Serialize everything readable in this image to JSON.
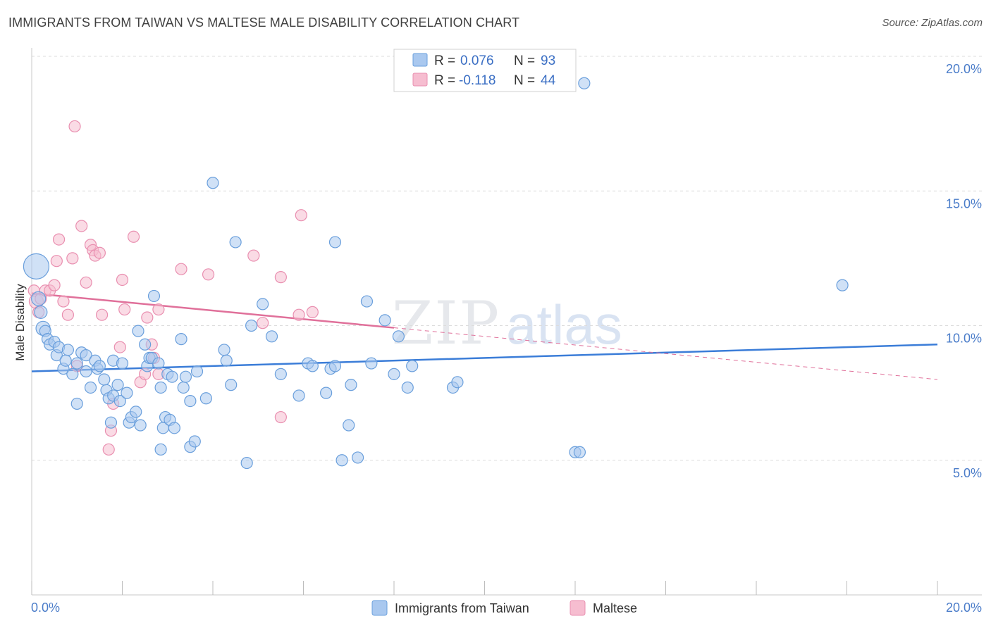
{
  "title": "IMMIGRANTS FROM TAIWAN VS MALTESE MALE DISABILITY CORRELATION CHART",
  "source": "Source: ZipAtlas.com",
  "watermark": {
    "zip": "ZIP",
    "atlas": "atlas"
  },
  "colors": {
    "taiwan_fill": "#a9c8ef",
    "taiwan_stroke": "#6a9fdc",
    "taiwan_line": "#3b7dd8",
    "maltese_fill": "#f6bdd0",
    "maltese_stroke": "#e98fb0",
    "maltese_line": "#e0709a",
    "grid": "#dcdcdc",
    "tick_label": "#4a7cc9"
  },
  "legend": {
    "rows": [
      {
        "r_label": "R = ",
        "r_value": "0.076",
        "n_label": "N = ",
        "n_value": "93"
      },
      {
        "r_label": "R = ",
        "r_value": "-0.118",
        "n_label": "N = ",
        "n_value": "44"
      }
    ]
  },
  "chart_data": {
    "type": "scatter",
    "title": "IMMIGRANTS FROM TAIWAN VS MALTESE MALE DISABILITY CORRELATION CHART",
    "xlabel": "",
    "ylabel": "Male Disability",
    "xlim": [
      0,
      20
    ],
    "ylim": [
      0,
      20
    ],
    "x_tick_labels": [
      "0.0%",
      "20.0%"
    ],
    "y_ticks": [
      5,
      10,
      15,
      20
    ],
    "y_tick_labels": [
      "5.0%",
      "10.0%",
      "15.0%",
      "20.0%"
    ],
    "grid": "horizontal dashed",
    "legend_position": "top-center",
    "series": [
      {
        "name": "Immigrants from Taiwan",
        "r": 0.076,
        "n": 93,
        "trend": {
          "x": [
            0,
            20
          ],
          "y": [
            8.3,
            9.3
          ],
          "dashed_from": null
        },
        "points": [
          [
            0.1,
            12.2,
            18
          ],
          [
            0.15,
            11.0,
            10
          ],
          [
            0.2,
            10.5,
            9
          ],
          [
            0.25,
            9.9,
            10
          ],
          [
            0.3,
            9.8,
            8
          ],
          [
            0.35,
            9.5,
            8
          ],
          [
            0.4,
            9.3,
            8
          ],
          [
            0.5,
            9.4,
            8
          ],
          [
            0.55,
            8.9,
            8
          ],
          [
            0.6,
            9.2,
            8
          ],
          [
            0.7,
            8.4,
            8
          ],
          [
            0.75,
            8.7,
            8
          ],
          [
            0.8,
            9.1,
            8
          ],
          [
            0.9,
            8.2,
            8
          ],
          [
            1.0,
            8.6,
            8
          ],
          [
            1.0,
            7.1,
            8
          ],
          [
            1.1,
            9.0,
            8
          ],
          [
            1.2,
            8.3,
            8
          ],
          [
            1.2,
            8.9,
            8
          ],
          [
            1.3,
            7.7,
            8
          ],
          [
            1.4,
            8.7,
            8
          ],
          [
            1.45,
            8.4,
            8
          ],
          [
            1.5,
            8.5,
            8
          ],
          [
            1.6,
            8.0,
            8
          ],
          [
            1.65,
            7.6,
            8
          ],
          [
            1.7,
            7.3,
            8
          ],
          [
            1.8,
            7.4,
            8
          ],
          [
            1.75,
            6.4,
            8
          ],
          [
            1.8,
            8.7,
            8
          ],
          [
            1.9,
            7.8,
            8
          ],
          [
            1.95,
            7.2,
            8
          ],
          [
            2.0,
            8.6,
            8
          ],
          [
            2.1,
            7.5,
            8
          ],
          [
            2.15,
            6.4,
            8
          ],
          [
            2.2,
            6.6,
            8
          ],
          [
            2.3,
            6.8,
            8
          ],
          [
            2.35,
            9.8,
            8
          ],
          [
            2.4,
            6.3,
            8
          ],
          [
            2.5,
            9.3,
            8
          ],
          [
            2.55,
            8.5,
            8
          ],
          [
            2.6,
            8.8,
            8
          ],
          [
            2.65,
            8.8,
            8
          ],
          [
            2.7,
            11.1,
            8
          ],
          [
            2.8,
            8.6,
            8
          ],
          [
            2.85,
            7.7,
            8
          ],
          [
            2.85,
            5.4,
            8
          ],
          [
            2.9,
            6.2,
            8
          ],
          [
            2.95,
            6.6,
            8
          ],
          [
            3.0,
            8.2,
            8
          ],
          [
            3.05,
            6.5,
            8
          ],
          [
            3.1,
            8.1,
            8
          ],
          [
            3.15,
            6.2,
            8
          ],
          [
            3.3,
            9.5,
            8
          ],
          [
            3.35,
            7.7,
            8
          ],
          [
            3.4,
            8.1,
            8
          ],
          [
            3.5,
            7.2,
            8
          ],
          [
            3.5,
            5.5,
            8
          ],
          [
            3.6,
            5.7,
            8
          ],
          [
            3.65,
            8.3,
            8
          ],
          [
            3.85,
            7.3,
            8
          ],
          [
            4.0,
            15.3,
            8
          ],
          [
            4.25,
            9.1,
            8
          ],
          [
            4.3,
            8.7,
            8
          ],
          [
            4.4,
            7.8,
            8
          ],
          [
            4.5,
            13.1,
            8
          ],
          [
            4.75,
            4.9,
            8
          ],
          [
            4.85,
            10.0,
            8
          ],
          [
            5.1,
            10.8,
            8
          ],
          [
            5.3,
            9.6,
            8
          ],
          [
            5.5,
            8.2,
            8
          ],
          [
            5.9,
            7.4,
            8
          ],
          [
            6.1,
            8.6,
            8
          ],
          [
            6.2,
            8.5,
            8
          ],
          [
            6.5,
            7.5,
            8
          ],
          [
            6.6,
            8.4,
            8
          ],
          [
            6.7,
            13.1,
            8
          ],
          [
            6.7,
            8.5,
            8
          ],
          [
            6.85,
            5.0,
            8
          ],
          [
            7.0,
            6.3,
            8
          ],
          [
            7.05,
            7.8,
            8
          ],
          [
            7.2,
            5.1,
            8
          ],
          [
            7.4,
            10.9,
            8
          ],
          [
            7.5,
            8.6,
            8
          ],
          [
            7.8,
            10.2,
            8
          ],
          [
            8.0,
            8.2,
            8
          ],
          [
            8.1,
            9.6,
            8
          ],
          [
            8.3,
            7.7,
            8
          ],
          [
            8.4,
            8.5,
            8
          ],
          [
            9.3,
            7.7,
            8
          ],
          [
            9.4,
            7.9,
            8
          ],
          [
            12.0,
            5.3,
            8
          ],
          [
            12.1,
            5.3,
            8
          ],
          [
            17.9,
            11.5,
            8
          ],
          [
            12.2,
            19.0,
            8
          ]
        ]
      },
      {
        "name": "Maltese",
        "r": -0.118,
        "n": 44,
        "trend": {
          "x": [
            0,
            20
          ],
          "y": [
            11.2,
            8.0
          ],
          "dashed_from": 8.0
        },
        "points": [
          [
            0.05,
            11.3,
            8
          ],
          [
            0.1,
            10.9,
            10
          ],
          [
            0.15,
            10.5,
            8
          ],
          [
            0.2,
            11.0,
            8
          ],
          [
            0.3,
            11.3,
            8
          ],
          [
            0.4,
            11.3,
            8
          ],
          [
            0.5,
            11.5,
            8
          ],
          [
            0.55,
            12.4,
            8
          ],
          [
            0.6,
            13.2,
            8
          ],
          [
            0.7,
            10.9,
            8
          ],
          [
            0.8,
            10.4,
            8
          ],
          [
            0.9,
            12.5,
            8
          ],
          [
            0.95,
            17.4,
            8
          ],
          [
            1.0,
            8.5,
            8
          ],
          [
            1.1,
            13.7,
            8
          ],
          [
            1.2,
            11.6,
            8
          ],
          [
            1.3,
            13.0,
            8
          ],
          [
            1.35,
            12.8,
            8
          ],
          [
            1.4,
            12.6,
            8
          ],
          [
            1.5,
            12.7,
            8
          ],
          [
            1.55,
            10.4,
            8
          ],
          [
            1.7,
            5.4,
            8
          ],
          [
            1.75,
            6.1,
            8
          ],
          [
            1.8,
            7.1,
            8
          ],
          [
            1.95,
            9.2,
            8
          ],
          [
            2.0,
            11.7,
            8
          ],
          [
            2.05,
            10.6,
            8
          ],
          [
            2.25,
            13.3,
            8
          ],
          [
            2.4,
            7.9,
            8
          ],
          [
            2.5,
            8.2,
            8
          ],
          [
            2.55,
            10.3,
            8
          ],
          [
            2.65,
            9.3,
            8
          ],
          [
            2.7,
            8.8,
            8
          ],
          [
            2.8,
            8.2,
            8
          ],
          [
            2.8,
            10.6,
            8
          ],
          [
            3.3,
            12.1,
            8
          ],
          [
            3.9,
            11.9,
            8
          ],
          [
            4.9,
            12.6,
            8
          ],
          [
            5.1,
            10.1,
            8
          ],
          [
            5.5,
            11.8,
            8
          ],
          [
            5.5,
            6.6,
            8
          ],
          [
            5.9,
            10.4,
            8
          ],
          [
            5.95,
            14.1,
            8
          ],
          [
            6.2,
            10.5,
            8
          ]
        ]
      }
    ]
  },
  "bottom_legend": [
    {
      "label": "Immigrants from Taiwan"
    },
    {
      "label": "Maltese"
    }
  ]
}
